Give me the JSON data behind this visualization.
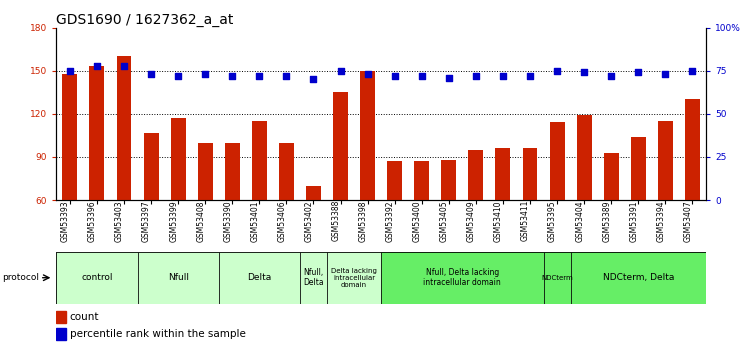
{
  "title": "GDS1690 / 1627362_a_at",
  "samples": [
    "GSM53393",
    "GSM53396",
    "GSM53403",
    "GSM53397",
    "GSM53399",
    "GSM53408",
    "GSM53390",
    "GSM53401",
    "GSM53406",
    "GSM53402",
    "GSM53388",
    "GSM53398",
    "GSM53392",
    "GSM53400",
    "GSM53405",
    "GSM53409",
    "GSM53410",
    "GSM53411",
    "GSM53395",
    "GSM53404",
    "GSM53389",
    "GSM53391",
    "GSM53394",
    "GSM53407"
  ],
  "counts": [
    148,
    153,
    160,
    107,
    117,
    100,
    100,
    115,
    100,
    70,
    135,
    150,
    87,
    87,
    88,
    95,
    96,
    96,
    114,
    119,
    93,
    104,
    115,
    130
  ],
  "percentile": [
    75,
    78,
    78,
    73,
    72,
    73,
    72,
    72,
    72,
    70,
    75,
    73,
    72,
    72,
    71,
    72,
    72,
    72,
    75,
    74,
    72,
    74,
    73,
    75
  ],
  "groups": [
    {
      "label": "control",
      "start": 0,
      "end": 3,
      "color": "#ccffcc"
    },
    {
      "label": "Nfull",
      "start": 3,
      "end": 6,
      "color": "#ccffcc"
    },
    {
      "label": "Delta",
      "start": 6,
      "end": 9,
      "color": "#ccffcc"
    },
    {
      "label": "Nfull,\nDelta",
      "start": 9,
      "end": 10,
      "color": "#ccffcc"
    },
    {
      "label": "Delta lacking\nintracellular\ndomain",
      "start": 10,
      "end": 12,
      "color": "#ccffcc"
    },
    {
      "label": "Nfull, Delta lacking\nintracellular domain",
      "start": 12,
      "end": 18,
      "color": "#66ee66"
    },
    {
      "label": "NDCterm",
      "start": 18,
      "end": 19,
      "color": "#66ee66"
    },
    {
      "label": "NDCterm, Delta",
      "start": 19,
      "end": 24,
      "color": "#66ee66"
    }
  ],
  "ylim_left": [
    60,
    180
  ],
  "ylim_right": [
    0,
    100
  ],
  "yticks_left": [
    60,
    90,
    120,
    150,
    180
  ],
  "yticks_right": [
    0,
    25,
    50,
    75,
    100
  ],
  "bar_color": "#cc2200",
  "dot_color": "#0000cc",
  "title_fontsize": 10,
  "tick_fontsize": 6.5,
  "sample_fontsize": 5.5,
  "group_fontsize": 6.5,
  "legend_fontsize": 7.5
}
